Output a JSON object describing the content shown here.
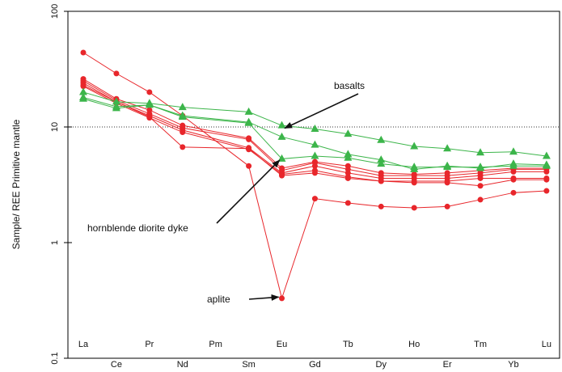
{
  "chart_data": {
    "type": "line",
    "title": "",
    "xlabel": "",
    "ylabel": "Sample/ REE Primitive mantle",
    "yscale": "log",
    "ylim": [
      0.1,
      100
    ],
    "y_ticks": [
      "0.1",
      "1",
      "10",
      "100"
    ],
    "reference_line": {
      "y": 10,
      "style": "dotted"
    },
    "categories": [
      "La",
      "Ce",
      "Pr",
      "Nd",
      "Pm",
      "Sm",
      "Eu",
      "Gd",
      "Tb",
      "Dy",
      "Ho",
      "Er",
      "Tm",
      "Yb",
      "Lu"
    ],
    "category_label_rows": [
      "top",
      "bottom",
      "top",
      "bottom",
      "top",
      "bottom",
      "top",
      "bottom",
      "top",
      "bottom",
      "top",
      "bottom",
      "top",
      "bottom",
      "top"
    ],
    "colors": {
      "red": "#e8262b",
      "green": "#3cb54a"
    },
    "series": [
      {
        "group": "aplite",
        "color": "#e8262b",
        "marker": "circle",
        "values": [
          44,
          29,
          20,
          12.5,
          null,
          4.6,
          0.33,
          2.4,
          2.2,
          2.05,
          2.0,
          2.05,
          2.35,
          2.7,
          2.8
        ]
      },
      {
        "group": "hornblende diorite dyke",
        "color": "#e8262b",
        "marker": "circle",
        "values": [
          26,
          17.5,
          14,
          10.3,
          null,
          8.0,
          4.4,
          5.0,
          4.6,
          4.0,
          3.9,
          4.0,
          4.2,
          4.4,
          4.4
        ]
      },
      {
        "group": "hornblende diorite dyke",
        "color": "#e8262b",
        "marker": "circle",
        "values": [
          25,
          17,
          13,
          9.8,
          null,
          7.8,
          4.2,
          4.9,
          4.3,
          3.8,
          3.8,
          3.8,
          4.0,
          4.3,
          4.3
        ]
      },
      {
        "group": "hornblende diorite dyke",
        "color": "#e8262b",
        "marker": "circle",
        "values": [
          24,
          16.5,
          12.5,
          9.4,
          null,
          6.6,
          4.0,
          4.6,
          4.0,
          3.6,
          3.6,
          3.6,
          3.8,
          4.1,
          4.1
        ]
      },
      {
        "group": "hornblende diorite dyke",
        "color": "#e8262b",
        "marker": "circle",
        "values": [
          22.5,
          16,
          12,
          9.0,
          null,
          6.4,
          3.9,
          4.2,
          3.7,
          3.4,
          3.4,
          3.4,
          3.6,
          3.6,
          3.6
        ]
      },
      {
        "group": "hornblende diorite dyke",
        "color": "#e8262b",
        "marker": "circle",
        "values": [
          23,
          16.5,
          12.2,
          6.7,
          null,
          6.5,
          3.8,
          4.0,
          3.6,
          3.4,
          3.3,
          3.3,
          3.1,
          3.5,
          3.5
        ]
      },
      {
        "group": "basalts",
        "color": "#3cb54a",
        "marker": "triangle",
        "values": [
          20,
          16.5,
          16,
          14.8,
          null,
          13.5,
          10.3,
          9.6,
          8.7,
          7.7,
          6.8,
          6.5,
          6.0,
          6.1,
          5.6
        ]
      },
      {
        "group": "basalts",
        "color": "#3cb54a",
        "marker": "triangle",
        "values": [
          18,
          15,
          15.5,
          12.5,
          null,
          11,
          8.2,
          7.0,
          5.8,
          5.2,
          4.3,
          4.6,
          4.4,
          4.8,
          4.7
        ]
      },
      {
        "group": "basalts",
        "color": "#3cb54a",
        "marker": "triangle",
        "values": [
          17.5,
          14.5,
          15.5,
          12.2,
          null,
          10.8,
          5.3,
          5.6,
          5.4,
          4.8,
          4.5,
          4.5,
          4.5,
          4.6,
          4.6
        ]
      }
    ],
    "annotations": [
      {
        "text": "basalts",
        "arrow_to": {
          "category": "Eu",
          "y": 9.5
        }
      },
      {
        "text": "hornblende diorite dyke",
        "arrow_to": {
          "category": "Eu",
          "y": 5.4
        }
      },
      {
        "text": "aplite",
        "arrow_to": {
          "category": "Eu",
          "y": 0.34
        }
      }
    ]
  }
}
